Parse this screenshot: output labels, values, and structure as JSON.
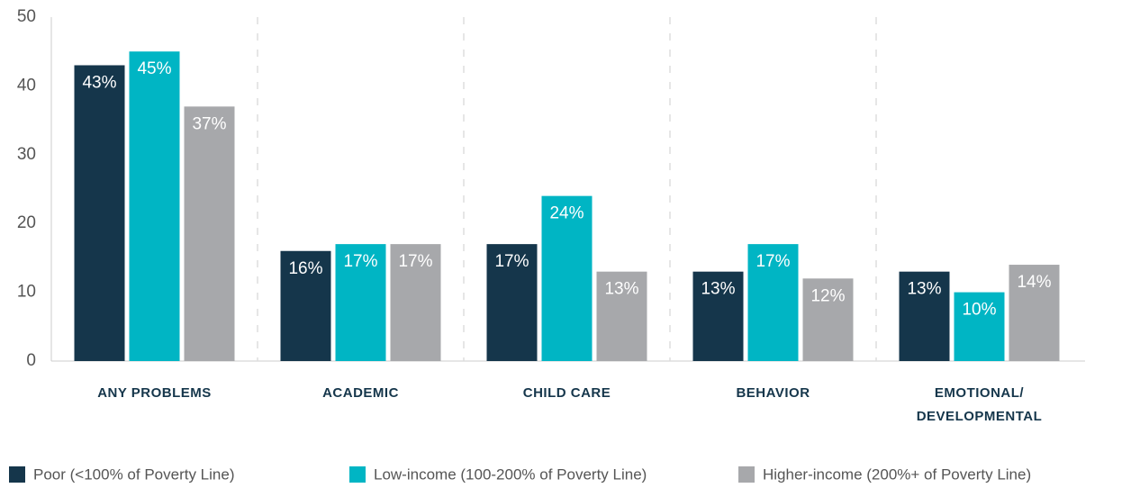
{
  "chart_data": {
    "type": "bar",
    "categories": [
      "ANY PROBLEMS",
      "ACADEMIC",
      "CHILD CARE",
      "BEHAVIOR",
      "EMOTIONAL/ DEVELOPMENTAL"
    ],
    "series": [
      {
        "name": "Poor (<100% of Poverty Line)",
        "color": "#15364b",
        "values": [
          43,
          16,
          17,
          13,
          13
        ],
        "value_labels": [
          "43%",
          "16%",
          "17%",
          "13%",
          "13%"
        ]
      },
      {
        "name": "Low-income (100-200% of Poverty Line)",
        "color": "#00b5c4",
        "values": [
          45,
          17,
          24,
          17,
          10
        ],
        "value_labels": [
          "45%",
          "17%",
          "24%",
          "17%",
          "10%"
        ]
      },
      {
        "name": "Higher-income (200%+ of Poverty Line)",
        "color": "#a7a8ab",
        "values": [
          37,
          17,
          13,
          12,
          14
        ],
        "value_labels": [
          "37%",
          "17%",
          "13%",
          "12%",
          "14%"
        ]
      }
    ],
    "ylim": [
      0,
      50
    ],
    "yticks": [
      0,
      10,
      20,
      30,
      40,
      50
    ],
    "grid": false,
    "legend": "bottom"
  }
}
